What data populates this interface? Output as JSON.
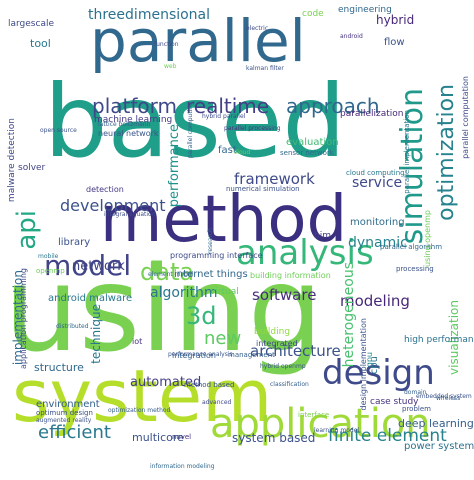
{
  "word_cloud": {
    "words": [
      {
        "text": "using",
        "color": "#7ad151"
      },
      {
        "text": "based",
        "color": "#1f9e89"
      },
      {
        "text": "system",
        "color": "#b5de2b"
      },
      {
        "text": "parallel",
        "color": "#31688e"
      },
      {
        "text": "method",
        "color": "#3b2f80"
      },
      {
        "text": "application",
        "color": "#a0da39"
      },
      {
        "text": "analysis",
        "color": "#35b779"
      },
      {
        "text": "design",
        "color": "#3e4a89"
      },
      {
        "text": "model",
        "color": "#414487"
      },
      {
        "text": "api",
        "color": "#22a884"
      },
      {
        "text": "simulation",
        "color": "#1f9a8a"
      },
      {
        "text": "optimization",
        "color": "#26828e"
      },
      {
        "text": "data",
        "color": "#7ad151"
      },
      {
        "text": "approach",
        "color": "#31688e"
      },
      {
        "text": "platform",
        "color": "#3e4989"
      },
      {
        "text": "realtime",
        "color": "#433e85"
      },
      {
        "text": "threedimensional",
        "color": "#2c728e"
      },
      {
        "text": "efficient",
        "color": "#2a788e"
      },
      {
        "text": "finite element",
        "color": "#26828e"
      },
      {
        "text": "development",
        "color": "#3b528b"
      },
      {
        "text": "framework",
        "color": "#3e4a89"
      },
      {
        "text": "software",
        "color": "#472d7b"
      },
      {
        "text": "architecture",
        "color": "#3b528b"
      },
      {
        "text": "modeling",
        "color": "#472878"
      },
      {
        "text": "dynamic",
        "color": "#25848e"
      },
      {
        "text": "3d",
        "color": "#35b779"
      },
      {
        "text": "new",
        "color": "#5ec962"
      },
      {
        "text": "network",
        "color": "#414487"
      },
      {
        "text": "algorithm",
        "color": "#2a788e"
      },
      {
        "text": "service",
        "color": "#3e4989"
      },
      {
        "text": "heterogeneous",
        "color": "#48c16e"
      },
      {
        "text": "visualization",
        "color": "#5ec962"
      },
      {
        "text": "implementation",
        "color": "#2f6c8e"
      },
      {
        "text": "technique",
        "color": "#2a788e"
      },
      {
        "text": "performance",
        "color": "#21918c"
      },
      {
        "text": "system based",
        "color": "#3b528b"
      },
      {
        "text": "automated",
        "color": "#433e85"
      },
      {
        "text": "structure",
        "color": "#31688e"
      },
      {
        "text": "hybrid",
        "color": "#472878"
      },
      {
        "text": "tool",
        "color": "#2a788e"
      },
      {
        "text": "largescale",
        "color": "#3e4a89"
      },
      {
        "text": "machine learning",
        "color": "#443983"
      },
      {
        "text": "multicore",
        "color": "#3b528b"
      },
      {
        "text": "deep learning",
        "color": "#35608d"
      },
      {
        "text": "power system",
        "color": "#2c728e"
      },
      {
        "text": "environment",
        "color": "#35608d"
      },
      {
        "text": "high performance",
        "color": "#2c728e"
      },
      {
        "text": "library",
        "color": "#3b528b"
      },
      {
        "text": "monitoring",
        "color": "#2f6c8e"
      },
      {
        "text": "solver",
        "color": "#414487"
      },
      {
        "text": "fast",
        "color": "#31688e"
      },
      {
        "text": "evaluation",
        "color": "#3fbc73"
      },
      {
        "text": "detection",
        "color": "#443983"
      },
      {
        "text": "malware detection",
        "color": "#3e4989"
      },
      {
        "text": "neural network",
        "color": "#39568c"
      },
      {
        "text": "internet things",
        "color": "#31688e"
      },
      {
        "text": "case study",
        "color": "#46327e"
      },
      {
        "text": "code",
        "color": "#7ad151"
      },
      {
        "text": "engineering",
        "color": "#31688e"
      },
      {
        "text": "flow",
        "color": "#3b528b"
      },
      {
        "text": "parallelization",
        "color": "#472878"
      },
      {
        "text": "android malware",
        "color": "#2a788e"
      },
      {
        "text": "virtual",
        "color": "#5ec962"
      },
      {
        "text": "using openmp",
        "color": "#6ece58"
      },
      {
        "text": "building",
        "color": "#8fd744"
      },
      {
        "text": "integration",
        "color": "#35608d"
      },
      {
        "text": "integrated",
        "color": "#3e4a89"
      },
      {
        "text": "bim",
        "color": "#433e85"
      },
      {
        "text": "cpu",
        "color": "#2c728e"
      },
      {
        "text": "iot",
        "color": "#46337f"
      },
      {
        "text": "gpu",
        "color": "#25848e"
      },
      {
        "text": "parallel implementation",
        "color": "#2a788e"
      },
      {
        "text": "parallel computation",
        "color": "#3e4989"
      },
      {
        "text": "numerical simulation",
        "color": "#3b528b"
      },
      {
        "text": "programming interface",
        "color": "#3e4a89"
      },
      {
        "text": "building information",
        "color": "#6ece58"
      },
      {
        "text": "application programming",
        "color": "#3e4989"
      },
      {
        "text": "design implementation",
        "color": "#3b528b"
      },
      {
        "text": "cloud computing",
        "color": "#2a788e"
      },
      {
        "text": "sensor network",
        "color": "#31688e"
      },
      {
        "text": "parallel algorithm",
        "color": "#31688e"
      },
      {
        "text": "management",
        "color": "#35608d"
      },
      {
        "text": "performance analysis",
        "color": "#39568c"
      },
      {
        "text": "method based",
        "color": "#3b528b"
      },
      {
        "text": "parallel processing",
        "color": "#46327e"
      },
      {
        "text": "parallel computing",
        "color": "#35608d"
      },
      {
        "text": "optimum design",
        "color": "#3b528b"
      },
      {
        "text": "augmented reality",
        "color": "#3b528b"
      },
      {
        "text": "interface",
        "color": "#7ad151"
      },
      {
        "text": "information modeling",
        "color": "#31688e"
      },
      {
        "text": "learning model",
        "color": "#3b528b"
      },
      {
        "text": "mobile",
        "color": "#2a788e"
      },
      {
        "text": "openmp",
        "color": "#6ece58"
      },
      {
        "text": "distributed",
        "color": "#31688e"
      },
      {
        "text": "classification",
        "color": "#35608d"
      },
      {
        "text": "advanced",
        "color": "#3e4a89"
      },
      {
        "text": "problem",
        "color": "#3b528b"
      },
      {
        "text": "novel",
        "color": "#46327e"
      },
      {
        "text": "processing",
        "color": "#3b528b"
      },
      {
        "text": "element model",
        "color": "#31688e"
      },
      {
        "text": "wireless",
        "color": "#35608d"
      },
      {
        "text": "hybrid openmp",
        "color": "#3b528b"
      },
      {
        "text": "integral equation",
        "color": "#3e4a89"
      },
      {
        "text": "research",
        "color": "#31688e"
      },
      {
        "text": "domain",
        "color": "#35608d"
      },
      {
        "text": "function",
        "color": "#3e4a89"
      },
      {
        "text": "web",
        "color": "#6ece58"
      },
      {
        "text": "android",
        "color": "#46327e"
      },
      {
        "text": "open source",
        "color": "#3b528b"
      },
      {
        "text": "lattice boltzmann",
        "color": "#35608d"
      },
      {
        "text": "hybrid parallel",
        "color": "#3e4a89"
      },
      {
        "text": "electric",
        "color": "#3e4a89"
      },
      {
        "text": "cloud",
        "color": "#6ece58"
      },
      {
        "text": "embedded system",
        "color": "#3b528b"
      },
      {
        "text": "optimization method",
        "color": "#35608d"
      },
      {
        "text": "kalman filter",
        "color": "#3b528b"
      }
    ]
  }
}
